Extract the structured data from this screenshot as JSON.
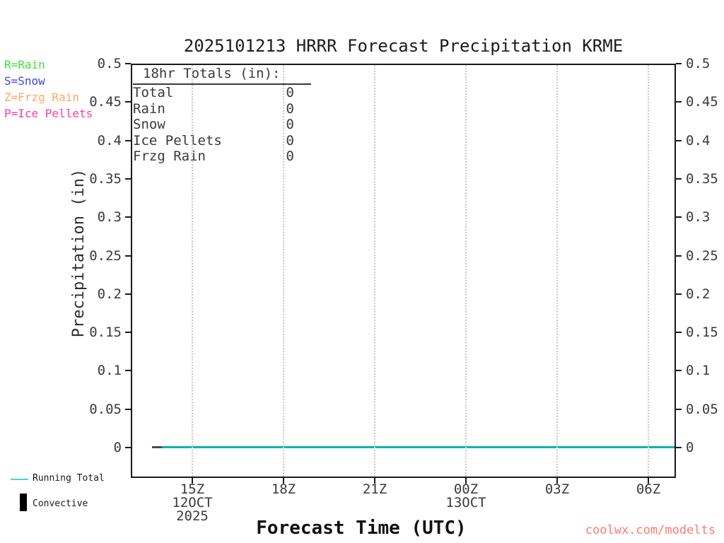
{
  "title": "2025101213 HRRR Forecast Precipitation KRME",
  "watermark": "coolwx.com/modelts",
  "colors": {
    "rain": "#3ce03c",
    "snow": "#4040e8",
    "frzg_rain": "#ffa861",
    "ice_pellets": "#ff3aa0",
    "running_total_line": "#0fb2b2",
    "running_total_swatch": "#41d9d9",
    "convective": "#000000",
    "watermark": "#f97b70",
    "gridline": "#c9c9c9",
    "axis": "#1a1a1a"
  },
  "type_legend": [
    {
      "label": "R=Rain",
      "color": "#3ce03c"
    },
    {
      "label": "S=Snow",
      "color": "#4040e8"
    },
    {
      "label": "Z=Frzg Rain",
      "color": "#ffa861"
    },
    {
      "label": "P=Ice Pellets",
      "color": "#ff3aa0"
    }
  ],
  "totals_box": {
    "heading": "18hr Totals (in):",
    "rows": [
      {
        "label": "Total",
        "value": "0"
      },
      {
        "label": "Rain",
        "value": "0"
      },
      {
        "label": "Snow",
        "value": "0"
      },
      {
        "label": "Ice Pellets",
        "value": "0"
      },
      {
        "label": "Frzg Rain",
        "value": "0"
      }
    ]
  },
  "axes": {
    "y_label": "Precipitation (in)",
    "x_label": "Forecast Time (UTC)",
    "y_ticks": [
      "0.5",
      "0.45",
      "0.4",
      "0.35",
      "0.3",
      "0.25",
      "0.2",
      "0.15",
      "0.1",
      "0.05",
      "0"
    ],
    "x_ticks": [
      {
        "label": "15Z",
        "sub": "12OCT",
        "sub2": "2025"
      },
      {
        "label": "18Z",
        "sub": "",
        "sub2": ""
      },
      {
        "label": "21Z",
        "sub": "",
        "sub2": ""
      },
      {
        "label": "00Z",
        "sub": "13OCT",
        "sub2": ""
      },
      {
        "label": "03Z",
        "sub": "",
        "sub2": ""
      },
      {
        "label": "06Z",
        "sub": "",
        "sub2": ""
      }
    ]
  },
  "bottom_legend": [
    {
      "label": "Running Total"
    },
    {
      "label": "Convective"
    }
  ],
  "chart_data": {
    "type": "line",
    "title": "2025101213 HRRR Forecast Precipitation KRME",
    "xlabel": "Forecast Time (UTC)",
    "ylabel": "Precipitation (in)",
    "ylim": [
      0,
      0.5
    ],
    "y_tick_step": 0.05,
    "x": [
      "15Z",
      "18Z",
      "21Z",
      "00Z",
      "03Z",
      "06Z"
    ],
    "x_date_annotations": {
      "15Z": "12OCT 2025",
      "00Z": "13OCT"
    },
    "series": [
      {
        "name": "Running Total",
        "color": "#0fb2b2",
        "values": [
          0,
          0,
          0,
          0,
          0,
          0
        ]
      },
      {
        "name": "Convective",
        "color": "#000000",
        "values": [
          0,
          0,
          0,
          0,
          0,
          0
        ]
      }
    ],
    "totals_18hr_in": {
      "Total": 0,
      "Rain": 0,
      "Snow": 0,
      "Ice Pellets": 0,
      "Frzg Rain": 0
    },
    "grid": "vertical-dotted",
    "legend_position": "bottom-left"
  }
}
